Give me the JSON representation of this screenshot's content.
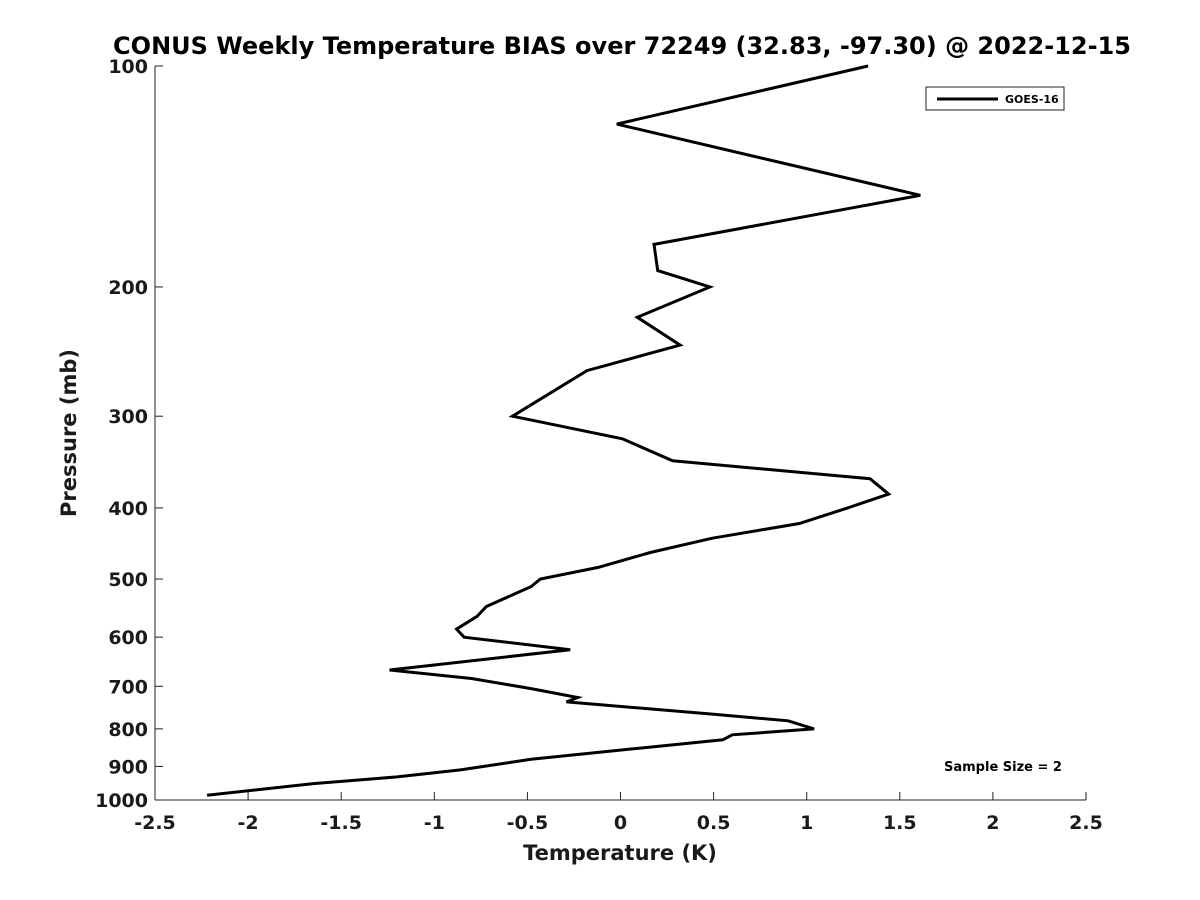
{
  "chart_data": {
    "type": "line",
    "title": "CONUS Weekly Temperature BIAS over 72249 (32.83, -97.30) @ 2022-12-15",
    "xlabel": "Temperature (K)",
    "ylabel": "Pressure (mb)",
    "xlim": [
      -2.5,
      2.5
    ],
    "ylim": [
      1000,
      100
    ],
    "y_scale": "log",
    "grid": false,
    "legend_position": "top-right",
    "x_ticks": [
      -2.5,
      -2,
      -1.5,
      -1,
      -0.5,
      0,
      0.5,
      1,
      1.5,
      2,
      2.5
    ],
    "x_tick_labels": [
      "-2.5",
      "-2",
      "-1.5",
      "-1",
      "-0.5",
      "0",
      "0.5",
      "1",
      "1.5",
      "2",
      "2.5"
    ],
    "y_ticks": [
      100,
      200,
      300,
      400,
      500,
      600,
      700,
      800,
      900,
      1000
    ],
    "y_tick_labels": [
      "100",
      "200",
      "300",
      "400",
      "500",
      "600",
      "700",
      "800",
      "900",
      "1000"
    ],
    "series": [
      {
        "name": "GOES-16",
        "color": "#000000",
        "points": [
          {
            "x": 1.33,
            "p": 100
          },
          {
            "x": -0.02,
            "p": 120
          },
          {
            "x": 1.61,
            "p": 150
          },
          {
            "x": 0.18,
            "p": 175
          },
          {
            "x": 0.2,
            "p": 190
          },
          {
            "x": 0.48,
            "p": 200
          },
          {
            "x": 0.09,
            "p": 220
          },
          {
            "x": 0.32,
            "p": 240
          },
          {
            "x": -0.18,
            "p": 260
          },
          {
            "x": -0.58,
            "p": 300
          },
          {
            "x": 0.01,
            "p": 322
          },
          {
            "x": 0.28,
            "p": 345
          },
          {
            "x": 1.34,
            "p": 365
          },
          {
            "x": 1.44,
            "p": 383
          },
          {
            "x": 1.22,
            "p": 400
          },
          {
            "x": 0.96,
            "p": 420
          },
          {
            "x": 0.49,
            "p": 440
          },
          {
            "x": 0.16,
            "p": 460
          },
          {
            "x": -0.12,
            "p": 482
          },
          {
            "x": -0.43,
            "p": 500
          },
          {
            "x": -0.48,
            "p": 512
          },
          {
            "x": -0.72,
            "p": 545
          },
          {
            "x": -0.77,
            "p": 562
          },
          {
            "x": -0.88,
            "p": 585
          },
          {
            "x": -0.84,
            "p": 600
          },
          {
            "x": -0.27,
            "p": 624
          },
          {
            "x": -1.24,
            "p": 665
          },
          {
            "x": -0.8,
            "p": 683
          },
          {
            "x": -0.48,
            "p": 705
          },
          {
            "x": -0.23,
            "p": 725
          },
          {
            "x": -0.29,
            "p": 735
          },
          {
            "x": 0.47,
            "p": 763
          },
          {
            "x": 0.9,
            "p": 780
          },
          {
            "x": 1.04,
            "p": 800
          },
          {
            "x": 0.6,
            "p": 815
          },
          {
            "x": 0.55,
            "p": 828
          },
          {
            "x": 0.1,
            "p": 850
          },
          {
            "x": -0.48,
            "p": 880
          },
          {
            "x": -0.86,
            "p": 910
          },
          {
            "x": -1.2,
            "p": 930
          },
          {
            "x": -1.65,
            "p": 950
          },
          {
            "x": -2.22,
            "p": 985
          }
        ]
      }
    ],
    "annotation": "Sample Size = 2"
  }
}
